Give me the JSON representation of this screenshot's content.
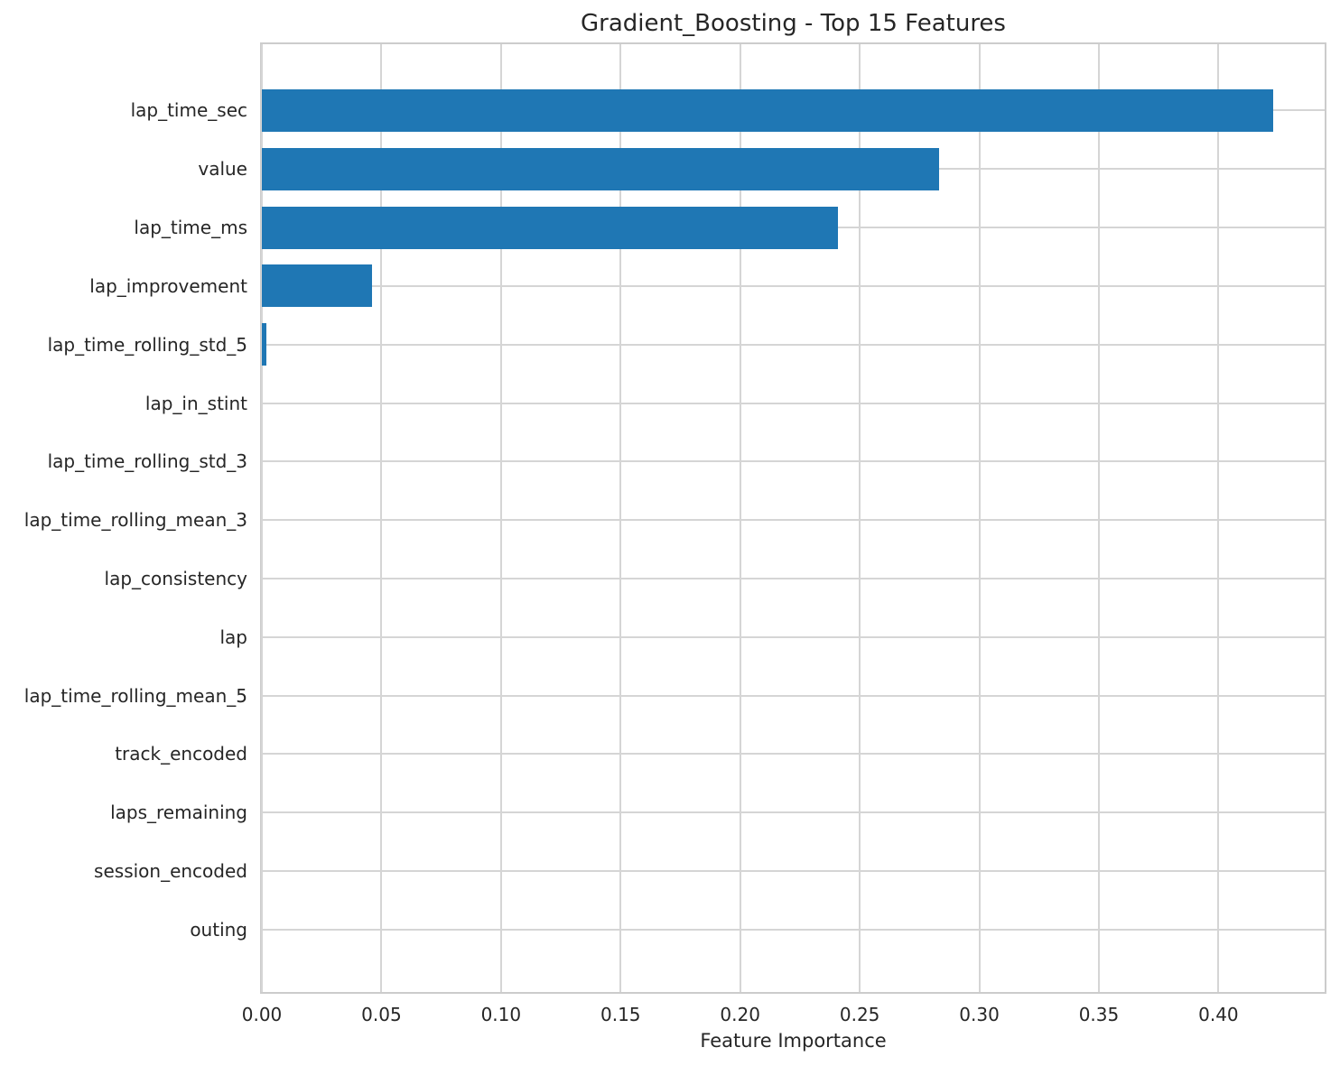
{
  "chart_data": {
    "type": "bar",
    "orientation": "horizontal",
    "title": "Gradient_Boosting - Top 15 Features",
    "xlabel": "Feature Importance",
    "ylabel": "",
    "categories": [
      "lap_time_sec",
      "value",
      "lap_time_ms",
      "lap_improvement",
      "lap_time_rolling_std_5",
      "lap_in_stint",
      "lap_time_rolling_std_3",
      "lap_time_rolling_mean_3",
      "lap_consistency",
      "lap",
      "lap_time_rolling_mean_5",
      "track_encoded",
      "laps_remaining",
      "session_encoded",
      "outing"
    ],
    "values": [
      0.423,
      0.283,
      0.241,
      0.046,
      0.002,
      0,
      0,
      0,
      0,
      0,
      0,
      0,
      0,
      0,
      0
    ],
    "xlim": [
      0,
      0.4444
    ],
    "xticks": [
      "0.00",
      "0.05",
      "0.10",
      "0.15",
      "0.20",
      "0.25",
      "0.30",
      "0.35",
      "0.40"
    ],
    "xtick_values": [
      0.0,
      0.05,
      0.1,
      0.15,
      0.2,
      0.25,
      0.3,
      0.35,
      0.4
    ],
    "grid": true,
    "legend": "none",
    "bar_color": "#1f77b4",
    "grid_color": "#d5d5d5",
    "spine_color": "#cccccc",
    "text_color": "#262626"
  }
}
